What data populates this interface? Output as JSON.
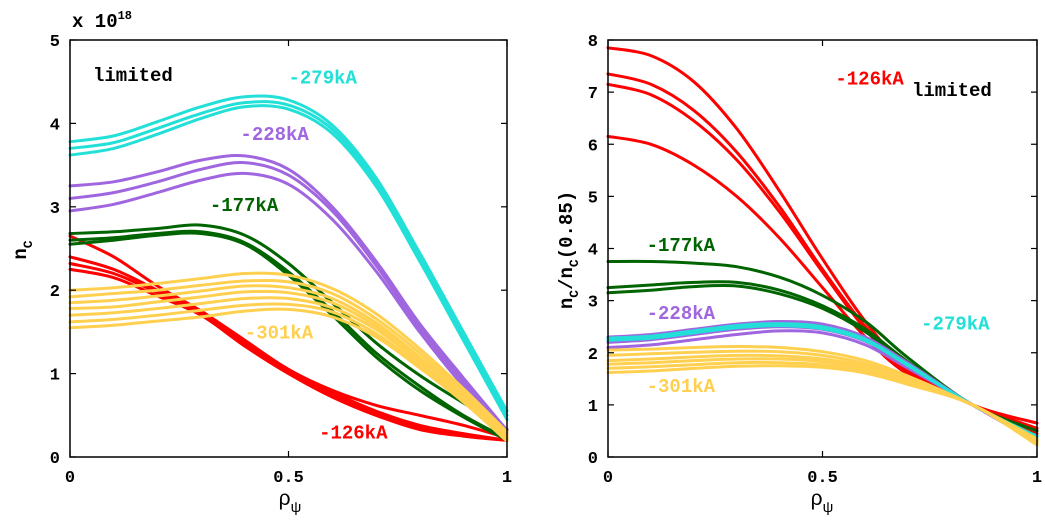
{
  "chart_data": [
    {
      "type": "line",
      "xlabel": "ρ",
      "xlabel_sub": "ψ",
      "ylabel": "n",
      "ylabel_sub": "C",
      "xlim": [
        0,
        1
      ],
      "ylim": [
        0,
        5
      ],
      "xticks": [
        "0",
        "0.5",
        "1"
      ],
      "yticks": [
        "0",
        "1",
        "2",
        "3",
        "4",
        "5"
      ],
      "multiplier": "x 10",
      "multiplier_exp": "18",
      "grid": false,
      "annotation_top": "limited",
      "x": [
        0,
        0.1,
        0.2,
        0.3,
        0.4,
        0.5,
        0.6,
        0.7,
        0.8,
        0.9,
        1.0
      ],
      "series": [
        {
          "group": "-126kA",
          "color": "#ff0000",
          "values": [
            2.65,
            2.4,
            2.05,
            1.75,
            1.4,
            1.05,
            0.8,
            0.62,
            0.5,
            0.38,
            0.23
          ]
        },
        {
          "group": "-126kA",
          "color": "#ff0000",
          "values": [
            2.4,
            2.25,
            2.0,
            1.75,
            1.38,
            1.05,
            0.78,
            0.55,
            0.38,
            0.28,
            0.2
          ]
        },
        {
          "group": "-126kA",
          "color": "#ff0000",
          "values": [
            2.32,
            2.2,
            1.97,
            1.72,
            1.35,
            1.02,
            0.75,
            0.52,
            0.35,
            0.27,
            0.2
          ]
        },
        {
          "group": "-126kA",
          "color": "#ff0000",
          "values": [
            2.25,
            2.15,
            1.93,
            1.7,
            1.33,
            1.0,
            0.72,
            0.5,
            0.33,
            0.25,
            0.2
          ]
        },
        {
          "group": "-177kA",
          "color": "#006400",
          "values": [
            2.68,
            2.7,
            2.74,
            2.78,
            2.66,
            2.32,
            1.85,
            1.37,
            0.98,
            0.65,
            0.33
          ]
        },
        {
          "group": "-177kA",
          "color": "#006400",
          "values": [
            2.6,
            2.63,
            2.68,
            2.7,
            2.57,
            2.22,
            1.75,
            1.25,
            0.85,
            0.5,
            0.22
          ]
        },
        {
          "group": "-177kA",
          "color": "#006400",
          "values": [
            2.55,
            2.6,
            2.66,
            2.68,
            2.55,
            2.18,
            1.7,
            1.2,
            0.8,
            0.48,
            0.2
          ]
        },
        {
          "group": "-228kA",
          "color": "#a066e0",
          "values": [
            3.25,
            3.3,
            3.42,
            3.56,
            3.61,
            3.45,
            3.0,
            2.35,
            1.6,
            0.95,
            0.32
          ]
        },
        {
          "group": "-228kA",
          "color": "#a066e0",
          "values": [
            3.1,
            3.17,
            3.3,
            3.45,
            3.53,
            3.38,
            2.95,
            2.3,
            1.55,
            0.9,
            0.3
          ]
        },
        {
          "group": "-228kA",
          "color": "#a066e0",
          "values": [
            2.95,
            3.03,
            3.17,
            3.32,
            3.4,
            3.27,
            2.85,
            2.23,
            1.5,
            0.85,
            0.28
          ]
        },
        {
          "group": "-279kA",
          "color": "#22e0d8",
          "values": [
            3.78,
            3.85,
            4.02,
            4.2,
            4.32,
            4.28,
            3.98,
            3.35,
            2.45,
            1.5,
            0.55
          ]
        },
        {
          "group": "-279kA",
          "color": "#22e0d8",
          "values": [
            3.7,
            3.77,
            3.94,
            4.12,
            4.25,
            4.22,
            3.93,
            3.3,
            2.4,
            1.45,
            0.5
          ]
        },
        {
          "group": "-279kA",
          "color": "#22e0d8",
          "values": [
            3.62,
            3.7,
            3.87,
            4.06,
            4.2,
            4.17,
            3.88,
            3.25,
            2.35,
            1.4,
            0.45
          ]
        },
        {
          "group": "-301kA",
          "color": "#ffd050",
          "values": [
            2.0,
            2.03,
            2.08,
            2.14,
            2.2,
            2.18,
            2.02,
            1.72,
            1.3,
            0.82,
            0.3
          ]
        },
        {
          "group": "-301kA",
          "color": "#ffd050",
          "values": [
            1.92,
            1.96,
            2.0,
            2.06,
            2.11,
            2.1,
            1.96,
            1.66,
            1.25,
            0.78,
            0.27
          ]
        },
        {
          "group": "-301kA",
          "color": "#ffd050",
          "values": [
            1.85,
            1.88,
            1.93,
            1.99,
            2.05,
            2.03,
            1.9,
            1.61,
            1.2,
            0.75,
            0.25
          ]
        },
        {
          "group": "-301kA",
          "color": "#ffd050",
          "values": [
            1.78,
            1.8,
            1.86,
            1.92,
            1.98,
            1.97,
            1.85,
            1.57,
            1.17,
            0.72,
            0.23
          ]
        },
        {
          "group": "-301kA",
          "color": "#ffd050",
          "values": [
            1.7,
            1.73,
            1.78,
            1.84,
            1.9,
            1.9,
            1.79,
            1.53,
            1.14,
            0.7,
            0.22
          ]
        },
        {
          "group": "-301kA",
          "color": "#ffd050",
          "values": [
            1.62,
            1.65,
            1.7,
            1.76,
            1.82,
            1.83,
            1.74,
            1.48,
            1.1,
            0.68,
            0.2
          ]
        },
        {
          "group": "-301kA",
          "color": "#ffd050",
          "values": [
            1.55,
            1.58,
            1.63,
            1.68,
            1.75,
            1.77,
            1.68,
            1.44,
            1.07,
            0.66,
            0.19
          ]
        }
      ],
      "labels": [
        {
          "text": "-279kA",
          "color": "#22e0d8",
          "x": 0.5,
          "y": 4.48
        },
        {
          "text": "-228kA",
          "color": "#a066e0",
          "x": 0.39,
          "y": 3.8
        },
        {
          "text": "-177kA",
          "color": "#006400",
          "x": 0.32,
          "y": 2.95
        },
        {
          "text": "-301kA",
          "color": "#ffd050",
          "x": 0.4,
          "y": 1.42
        },
        {
          "text": "-126kA",
          "color": "#ff0000",
          "x": 0.57,
          "y": 0.22
        }
      ]
    },
    {
      "type": "line",
      "xlabel": "ρ",
      "xlabel_sub": "ψ",
      "ylabel": "n",
      "ylabel_sub": "C",
      "ylabel_rest": "/n",
      "ylabel_sub2": "C",
      "ylabel_tail": "(0.85)",
      "xlim": [
        0,
        1
      ],
      "ylim": [
        0,
        8
      ],
      "xticks": [
        "0",
        "0.5",
        "1"
      ],
      "yticks": [
        "0",
        "1",
        "2",
        "3",
        "4",
        "5",
        "6",
        "7",
        "8"
      ],
      "grid": false,
      "annotation_top": "limited",
      "x": [
        0,
        0.1,
        0.2,
        0.3,
        0.4,
        0.5,
        0.6,
        0.7,
        0.85,
        1.0
      ],
      "series": [
        {
          "group": "-126kA",
          "color": "#ff0000",
          "values": [
            7.85,
            7.7,
            7.2,
            6.3,
            5.1,
            3.8,
            2.6,
            1.7,
            1.0,
            0.65
          ]
        },
        {
          "group": "-126kA",
          "color": "#ff0000",
          "values": [
            7.35,
            7.15,
            6.65,
            5.85,
            4.8,
            3.6,
            2.5,
            1.65,
            1.0,
            0.55
          ]
        },
        {
          "group": "-126kA",
          "color": "#ff0000",
          "values": [
            7.15,
            6.95,
            6.45,
            5.7,
            4.7,
            3.55,
            2.45,
            1.62,
            1.0,
            0.5
          ]
        },
        {
          "group": "-126kA",
          "color": "#ff0000",
          "values": [
            6.15,
            6.0,
            5.6,
            5.0,
            4.2,
            3.25,
            2.3,
            1.58,
            1.0,
            0.45
          ]
        },
        {
          "group": "-177kA",
          "color": "#006400",
          "values": [
            3.75,
            3.75,
            3.72,
            3.65,
            3.45,
            3.1,
            2.6,
            1.9,
            1.0,
            0.5
          ]
        },
        {
          "group": "-177kA",
          "color": "#006400",
          "values": [
            3.25,
            3.3,
            3.35,
            3.35,
            3.2,
            2.9,
            2.45,
            1.82,
            1.0,
            0.4
          ]
        },
        {
          "group": "-177kA",
          "color": "#006400",
          "values": [
            3.15,
            3.2,
            3.27,
            3.28,
            3.13,
            2.85,
            2.4,
            1.78,
            1.0,
            0.35
          ]
        },
        {
          "group": "-228kA",
          "color": "#a066e0",
          "values": [
            2.3,
            2.35,
            2.45,
            2.55,
            2.6,
            2.55,
            2.3,
            1.8,
            1.0,
            0.35
          ]
        },
        {
          "group": "-228kA",
          "color": "#a066e0",
          "values": [
            2.2,
            2.25,
            2.35,
            2.45,
            2.5,
            2.45,
            2.22,
            1.75,
            1.0,
            0.3
          ]
        },
        {
          "group": "-228kA",
          "color": "#a066e0",
          "values": [
            2.1,
            2.15,
            2.25,
            2.35,
            2.42,
            2.38,
            2.15,
            1.7,
            1.0,
            0.28
          ]
        },
        {
          "group": "-279kA",
          "color": "#22e0d8",
          "values": [
            2.28,
            2.32,
            2.42,
            2.52,
            2.56,
            2.5,
            2.26,
            1.77,
            1.0,
            0.4
          ]
        },
        {
          "group": "-279kA",
          "color": "#22e0d8",
          "values": [
            2.24,
            2.28,
            2.38,
            2.48,
            2.52,
            2.46,
            2.23,
            1.75,
            1.0,
            0.37
          ]
        },
        {
          "group": "-301kA",
          "color": "#ffd050",
          "values": [
            2.05,
            2.07,
            2.1,
            2.12,
            2.1,
            2.02,
            1.85,
            1.55,
            1.0,
            0.35
          ]
        },
        {
          "group": "-301kA",
          "color": "#ffd050",
          "values": [
            1.95,
            1.98,
            2.01,
            2.03,
            2.02,
            1.95,
            1.79,
            1.51,
            1.0,
            0.32
          ]
        },
        {
          "group": "-301kA",
          "color": "#ffd050",
          "values": [
            1.85,
            1.88,
            1.92,
            1.95,
            1.94,
            1.88,
            1.74,
            1.48,
            1.0,
            0.3
          ]
        },
        {
          "group": "-301kA",
          "color": "#ffd050",
          "values": [
            1.78,
            1.81,
            1.85,
            1.88,
            1.88,
            1.83,
            1.7,
            1.45,
            1.0,
            0.28
          ]
        },
        {
          "group": "-301kA",
          "color": "#ffd050",
          "values": [
            1.7,
            1.73,
            1.77,
            1.81,
            1.81,
            1.77,
            1.65,
            1.42,
            1.0,
            0.25
          ]
        },
        {
          "group": "-301kA",
          "color": "#ffd050",
          "values": [
            1.62,
            1.65,
            1.7,
            1.74,
            1.75,
            1.72,
            1.61,
            1.39,
            1.0,
            0.23
          ]
        }
      ],
      "labels": [
        {
          "text": "-126kA",
          "color": "#ff0000",
          "x": 0.53,
          "y": 7.15
        },
        {
          "text": "-177kA",
          "color": "#006400",
          "x": 0.09,
          "y": 3.95
        },
        {
          "text": "-228kA",
          "color": "#a066e0",
          "x": 0.09,
          "y": 2.65
        },
        {
          "text": "-279kA",
          "color": "#22e0d8",
          "x": 0.73,
          "y": 2.45
        },
        {
          "text": "-301kA",
          "color": "#ffd050",
          "x": 0.09,
          "y": 1.25
        }
      ]
    }
  ]
}
